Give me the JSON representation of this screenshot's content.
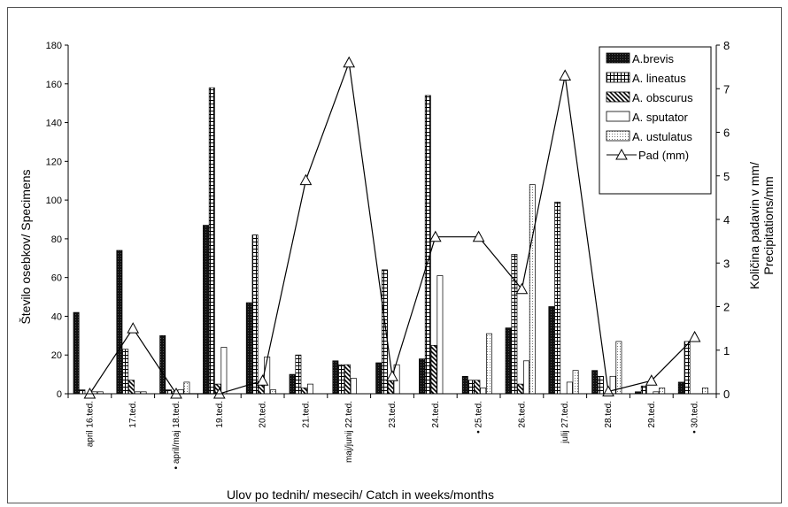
{
  "chart_data": {
    "type": "bar",
    "categories": [
      "april 16.ted.",
      "17.ted.",
      "april/maj 18.ted.",
      "19.ted.",
      "20.ted.",
      "21.ted.",
      "maj/junij 22.ted.",
      "23.ted.",
      "24.ted.",
      "25.ted.",
      "26.ted.",
      "julij 27.ted.",
      "28.ted.",
      "29.ted.",
      "30.ted."
    ],
    "category_markers": [
      "",
      "",
      "•",
      "",
      "",
      "",
      "",
      "",
      "",
      "•",
      "",
      "",
      "",
      "",
      "•"
    ],
    "xlabel": "Ulov po tednih/ mesecih/ Catch in weeks/months",
    "ylabel": "Število osebkov/ Specimens",
    "y2label_lines": [
      "Količina padavin v mm/",
      "Precipitations/mm"
    ],
    "ylim": [
      0,
      180
    ],
    "yticks": [
      "0",
      "20",
      "40",
      "60",
      "80",
      "100",
      "120",
      "140",
      "160",
      "180"
    ],
    "y2lim": [
      0,
      8
    ],
    "y2ticks": [
      "0",
      "1",
      "2",
      "3",
      "4",
      "5",
      "6",
      "7",
      "8"
    ],
    "legend_position": "top-right",
    "grid": false,
    "series": [
      {
        "name": "A.brevis",
        "pattern": "solid-dark",
        "values": [
          42,
          74,
          30,
          87,
          47,
          10,
          17,
          16,
          18,
          9,
          34,
          45,
          12,
          1,
          6
        ]
      },
      {
        "name": "A. lineatus",
        "pattern": "grid",
        "values": [
          2,
          23,
          2,
          158,
          82,
          20,
          15,
          64,
          154,
          7,
          72,
          99,
          9,
          4,
          27
        ]
      },
      {
        "name": "A. obscurus",
        "pattern": "diagonal",
        "values": [
          0,
          7,
          1,
          5,
          5,
          3,
          15,
          7,
          25,
          7,
          5,
          0,
          0,
          0,
          0
        ]
      },
      {
        "name": "A. sputator",
        "pattern": "white",
        "values": [
          1,
          1,
          2,
          24,
          19,
          5,
          8,
          15,
          61,
          3,
          17,
          6,
          9,
          1,
          0
        ]
      },
      {
        "name": "A. ustulatus",
        "pattern": "dotted",
        "values": [
          1,
          1,
          6,
          0,
          2,
          0,
          0,
          0,
          0,
          31,
          108,
          12,
          27,
          3,
          3
        ]
      }
    ],
    "line_series": {
      "name": "Pad (mm)",
      "axis": "right",
      "values": [
        0,
        1.5,
        0,
        0,
        0.3,
        4.9,
        7.6,
        0.4,
        3.6,
        3.6,
        2.4,
        7.3,
        0.05,
        0.3,
        1.3
      ]
    }
  }
}
